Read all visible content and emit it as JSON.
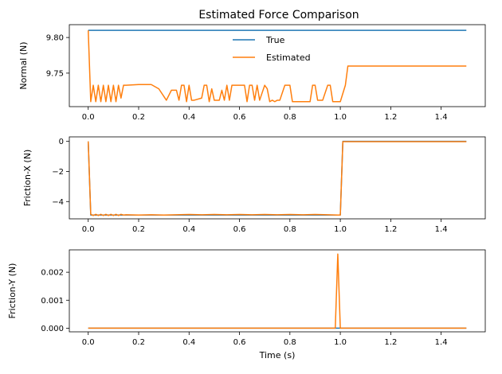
{
  "figure": {
    "title": "Estimated Force Comparison"
  },
  "colors": {
    "true": "#1f77b4",
    "estimated": "#ff7f0e"
  },
  "legend": {
    "placement": "upper-center",
    "entries": [
      "True",
      "Estimated"
    ]
  },
  "chart_data": [
    {
      "type": "line",
      "title": "Estimated Force Comparison",
      "xlabel": "",
      "ylabel": "Normal (N)",
      "xlim": [
        -0.075,
        1.575
      ],
      "ylim": [
        9.703,
        9.818
      ],
      "xticks": [
        0.0,
        0.2,
        0.4,
        0.6,
        0.8,
        1.0,
        1.2,
        1.4
      ],
      "xtick_labels": [
        "0.0",
        "0.2",
        "0.4",
        "0.6",
        "0.8",
        "1.0",
        "1.2",
        "1.4"
      ],
      "yticks": [
        9.75,
        9.8
      ],
      "ytick_labels": [
        "9.75",
        "9.80"
      ],
      "grid": false,
      "legend": "upper-center",
      "series": [
        {
          "name": "True",
          "x": [
            0.0,
            1.5
          ],
          "y": [
            9.81,
            9.81
          ]
        },
        {
          "name": "Estimated",
          "x": [
            0.0,
            0.01,
            0.02,
            0.03,
            0.04,
            0.05,
            0.06,
            0.07,
            0.08,
            0.09,
            0.1,
            0.11,
            0.12,
            0.13,
            0.14,
            0.15,
            0.2,
            0.25,
            0.28,
            0.31,
            0.33,
            0.35,
            0.36,
            0.37,
            0.38,
            0.39,
            0.4,
            0.41,
            0.42,
            0.45,
            0.46,
            0.47,
            0.48,
            0.49,
            0.5,
            0.52,
            0.53,
            0.54,
            0.55,
            0.56,
            0.57,
            0.58,
            0.6,
            0.62,
            0.63,
            0.64,
            0.65,
            0.66,
            0.67,
            0.68,
            0.7,
            0.71,
            0.72,
            0.73,
            0.74,
            0.75,
            0.76,
            0.78,
            0.8,
            0.81,
            0.82,
            0.85,
            0.88,
            0.89,
            0.9,
            0.91,
            0.93,
            0.95,
            0.96,
            0.97,
            0.98,
            1.0,
            1.02,
            1.03,
            1.04,
            1.1,
            1.2,
            1.3,
            1.4,
            1.5
          ],
          "y": [
            9.81,
            9.71,
            9.733,
            9.71,
            9.733,
            9.71,
            9.733,
            9.71,
            9.733,
            9.71,
            9.733,
            9.71,
            9.733,
            9.715,
            9.733,
            9.733,
            9.734,
            9.734,
            9.728,
            9.712,
            9.726,
            9.726,
            9.712,
            9.733,
            9.733,
            9.71,
            9.733,
            9.712,
            9.712,
            9.715,
            9.733,
            9.733,
            9.71,
            9.728,
            9.712,
            9.712,
            9.726,
            9.712,
            9.733,
            9.712,
            9.733,
            9.733,
            9.733,
            9.733,
            9.71,
            9.733,
            9.733,
            9.712,
            9.733,
            9.712,
            9.733,
            9.728,
            9.71,
            9.712,
            9.71,
            9.712,
            9.712,
            9.733,
            9.733,
            9.71,
            9.71,
            9.71,
            9.71,
            9.733,
            9.733,
            9.712,
            9.712,
            9.733,
            9.733,
            9.71,
            9.71,
            9.71,
            9.733,
            9.76,
            9.76,
            9.76,
            9.76,
            9.76,
            9.76,
            9.76
          ]
        }
      ]
    },
    {
      "type": "line",
      "xlabel": "",
      "ylabel": "Friction-X (N)",
      "xlim": [
        -0.075,
        1.575
      ],
      "ylim": [
        -5.15,
        0.3
      ],
      "xticks": [
        0.0,
        0.2,
        0.4,
        0.6,
        0.8,
        1.0,
        1.2,
        1.4
      ],
      "xtick_labels": [
        "0.0",
        "0.2",
        "0.4",
        "0.6",
        "0.8",
        "1.0",
        "1.2",
        "1.4"
      ],
      "yticks": [
        -4,
        -2,
        0
      ],
      "ytick_labels": [
        "−4",
        "−2",
        "0"
      ],
      "grid": false,
      "series": [
        {
          "name": "True",
          "x": [
            0.0,
            0.01,
            1.0,
            1.01,
            1.5
          ],
          "y": [
            0.0,
            -4.9,
            -4.9,
            0.0,
            0.0
          ]
        },
        {
          "name": "Estimated",
          "x": [
            0.0,
            0.01,
            0.02,
            0.03,
            0.04,
            0.05,
            0.06,
            0.07,
            0.08,
            0.09,
            0.1,
            0.11,
            0.12,
            0.13,
            0.14,
            0.15,
            0.2,
            0.25,
            0.3,
            0.35,
            0.4,
            0.45,
            0.5,
            0.55,
            0.6,
            0.65,
            0.7,
            0.75,
            0.8,
            0.85,
            0.9,
            0.95,
            0.99,
            1.0,
            1.01,
            1.05,
            1.5
          ],
          "y": [
            0.0,
            -4.85,
            -4.93,
            -4.85,
            -4.93,
            -4.85,
            -4.93,
            -4.85,
            -4.93,
            -4.85,
            -4.93,
            -4.85,
            -4.93,
            -4.85,
            -4.9,
            -4.88,
            -4.9,
            -4.88,
            -4.9,
            -4.88,
            -4.86,
            -4.88,
            -4.86,
            -4.88,
            -4.86,
            -4.88,
            -4.86,
            -4.88,
            -4.86,
            -4.88,
            -4.86,
            -4.88,
            -4.9,
            -4.9,
            -0.02,
            -0.02,
            -0.02
          ]
        }
      ]
    },
    {
      "type": "line",
      "xlabel": "Time (s)",
      "ylabel": "Friction-Y (N)",
      "xlim": [
        -0.075,
        1.575
      ],
      "ylim": [
        -0.00013,
        0.0028
      ],
      "xticks": [
        0.0,
        0.2,
        0.4,
        0.6,
        0.8,
        1.0,
        1.2,
        1.4
      ],
      "xtick_labels": [
        "0.0",
        "0.2",
        "0.4",
        "0.6",
        "0.8",
        "1.0",
        "1.2",
        "1.4"
      ],
      "yticks": [
        0.0,
        0.001,
        0.002
      ],
      "ytick_labels": [
        "0.000",
        "0.001",
        "0.002"
      ],
      "grid": false,
      "series": [
        {
          "name": "True",
          "x": [
            0.0,
            1.5
          ],
          "y": [
            0.0,
            0.0
          ]
        },
        {
          "name": "Estimated",
          "x": [
            0.0,
            0.97,
            0.98,
            0.99,
            1.0,
            1.5
          ],
          "y": [
            0.0,
            0.0,
            0.0,
            0.00265,
            0.0,
            0.0
          ]
        }
      ]
    }
  ]
}
